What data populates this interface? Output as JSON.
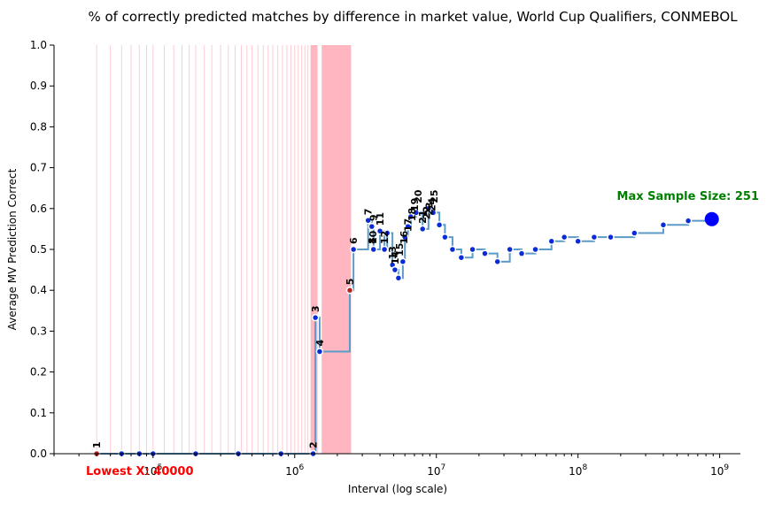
{
  "chart_data": {
    "type": "line",
    "title": "% of correctly predicted matches by difference in market value, World Cup Qualifiers, CONMEBOL",
    "xlabel": "Interval (log scale)",
    "ylabel": "Average MV Prediction Correct",
    "x_scale": "log",
    "xlim": [
      20000,
      1400000000
    ],
    "ylim": [
      0,
      1
    ],
    "y_ticks": [
      "0.0",
      "0.1",
      "0.2",
      "0.3",
      "0.4",
      "0.5",
      "0.6",
      "0.7",
      "0.8",
      "0.9",
      "1.0"
    ],
    "x_ticks": [
      {
        "value": 100000,
        "base": "10",
        "exp": "5"
      },
      {
        "value": 1000000,
        "base": "10",
        "exp": "6"
      },
      {
        "value": 10000000,
        "base": "10",
        "exp": "7"
      },
      {
        "value": 100000000,
        "base": "10",
        "exp": "8"
      },
      {
        "value": 1000000000,
        "base": "10",
        "exp": "9"
      }
    ],
    "grid": false,
    "series": [
      {
        "points": [
          [
            40000,
            0.0
          ],
          [
            60000,
            0.0
          ],
          [
            80000,
            0.0
          ],
          [
            100000,
            0.0
          ],
          [
            200000,
            0.0
          ],
          [
            400000,
            0.0
          ],
          [
            800000,
            0.0
          ],
          [
            1350000,
            0.0
          ],
          [
            1400000,
            0.333
          ],
          [
            1500000,
            0.25
          ],
          [
            2450000,
            0.4
          ],
          [
            2600000,
            0.5
          ],
          [
            3300000,
            0.571
          ],
          [
            3500000,
            0.556
          ],
          [
            3600000,
            0.5
          ],
          [
            4000000,
            0.545
          ],
          [
            4300000,
            0.5
          ],
          [
            4500000,
            0.54
          ],
          [
            4900000,
            0.462
          ],
          [
            5100000,
            0.45
          ],
          [
            5400000,
            0.43
          ],
          [
            5800000,
            0.47
          ],
          [
            6000000,
            0.53
          ],
          [
            6300000,
            0.556
          ],
          [
            6600000,
            0.58
          ],
          [
            7200000,
            0.59
          ],
          [
            8000000,
            0.55
          ],
          [
            8800000,
            0.6
          ],
          [
            9500000,
            0.59
          ],
          [
            10500000,
            0.56
          ],
          [
            11500000,
            0.53
          ],
          [
            13000000,
            0.5
          ],
          [
            15000000,
            0.48
          ],
          [
            18000000,
            0.5
          ],
          [
            22000000,
            0.49
          ],
          [
            27000000,
            0.47
          ],
          [
            33000000,
            0.5
          ],
          [
            40000000,
            0.49
          ],
          [
            50000000,
            0.5
          ],
          [
            65000000,
            0.52
          ],
          [
            80000000,
            0.53
          ],
          [
            100000000,
            0.52
          ],
          [
            130000000,
            0.53
          ],
          [
            170000000,
            0.53
          ],
          [
            250000000,
            0.54
          ],
          [
            400000000,
            0.56
          ],
          [
            600000000,
            0.57
          ],
          [
            880000000,
            0.574
          ]
        ]
      }
    ],
    "index_labels": [
      {
        "label": "1",
        "x": 40000,
        "y": 0.0
      },
      {
        "label": "2",
        "x": 1350000,
        "y": 0.0
      },
      {
        "label": "3",
        "x": 1400000,
        "y": 0.333
      },
      {
        "label": "4",
        "x": 1500000,
        "y": 0.25
      },
      {
        "label": "5",
        "x": 2450000,
        "y": 0.4
      },
      {
        "label": "6",
        "x": 2600000,
        "y": 0.5
      },
      {
        "label": "7",
        "x": 3300000,
        "y": 0.571
      },
      {
        "label": "8",
        "x": 3500000,
        "y": 0.5
      },
      {
        "label": "9",
        "x": 3600000,
        "y": 0.556
      },
      {
        "label": "10",
        "x": 3550000,
        "y": 0.5
      },
      {
        "label": "11",
        "x": 4000000,
        "y": 0.545
      },
      {
        "label": "12",
        "x": 4300000,
        "y": 0.5
      },
      {
        "label": "13",
        "x": 4900000,
        "y": 0.462
      },
      {
        "label": "14",
        "x": 5100000,
        "y": 0.45
      },
      {
        "label": "15",
        "x": 5500000,
        "y": 0.47
      },
      {
        "label": "16",
        "x": 5900000,
        "y": 0.5
      },
      {
        "label": "17",
        "x": 6300000,
        "y": 0.53
      },
      {
        "label": "18",
        "x": 6700000,
        "y": 0.556
      },
      {
        "label": "19",
        "x": 7000000,
        "y": 0.58
      },
      {
        "label": "20",
        "x": 7400000,
        "y": 0.6
      },
      {
        "label": "21",
        "x": 8000000,
        "y": 0.55
      },
      {
        "label": "22",
        "x": 8500000,
        "y": 0.56
      },
      {
        "label": "23",
        "x": 8900000,
        "y": 0.57
      },
      {
        "label": "24",
        "x": 9300000,
        "y": 0.58
      },
      {
        "label": "25",
        "x": 9600000,
        "y": 0.6
      }
    ],
    "red_points_x": [
      40000,
      2450000
    ],
    "highlight_regions": [
      {
        "from": 1300000,
        "to": 1450000,
        "label": ""
      },
      {
        "from": 1550000,
        "to": 2500000,
        "label": ""
      }
    ],
    "pink_line_x": [
      40000,
      50000,
      60000,
      70000,
      80000,
      90000,
      100000,
      120000,
      140000,
      160000,
      180000,
      200000,
      230000,
      260000,
      300000,
      340000,
      380000,
      420000,
      460000,
      500000,
      550000,
      600000,
      650000,
      700000,
      760000,
      820000,
      880000,
      940000,
      1000000,
      1060000,
      1120000,
      1180000,
      1240000,
      1300000
    ],
    "annotations": {
      "max_sample": {
        "text": "Max Sample Size: 251",
        "color": "#008000",
        "x": 880000000,
        "y": 0.574
      },
      "lowest": {
        "text": "Lowest X: 40000",
        "color": "#ff0000"
      }
    },
    "colors": {
      "line": "#5b9bc8",
      "marker": "#0a2bd8",
      "marker_edge": "#ffffff",
      "red_marker": "#b22222",
      "pink_region": "#ffb6c1",
      "max_marker": "#0000ff"
    }
  }
}
